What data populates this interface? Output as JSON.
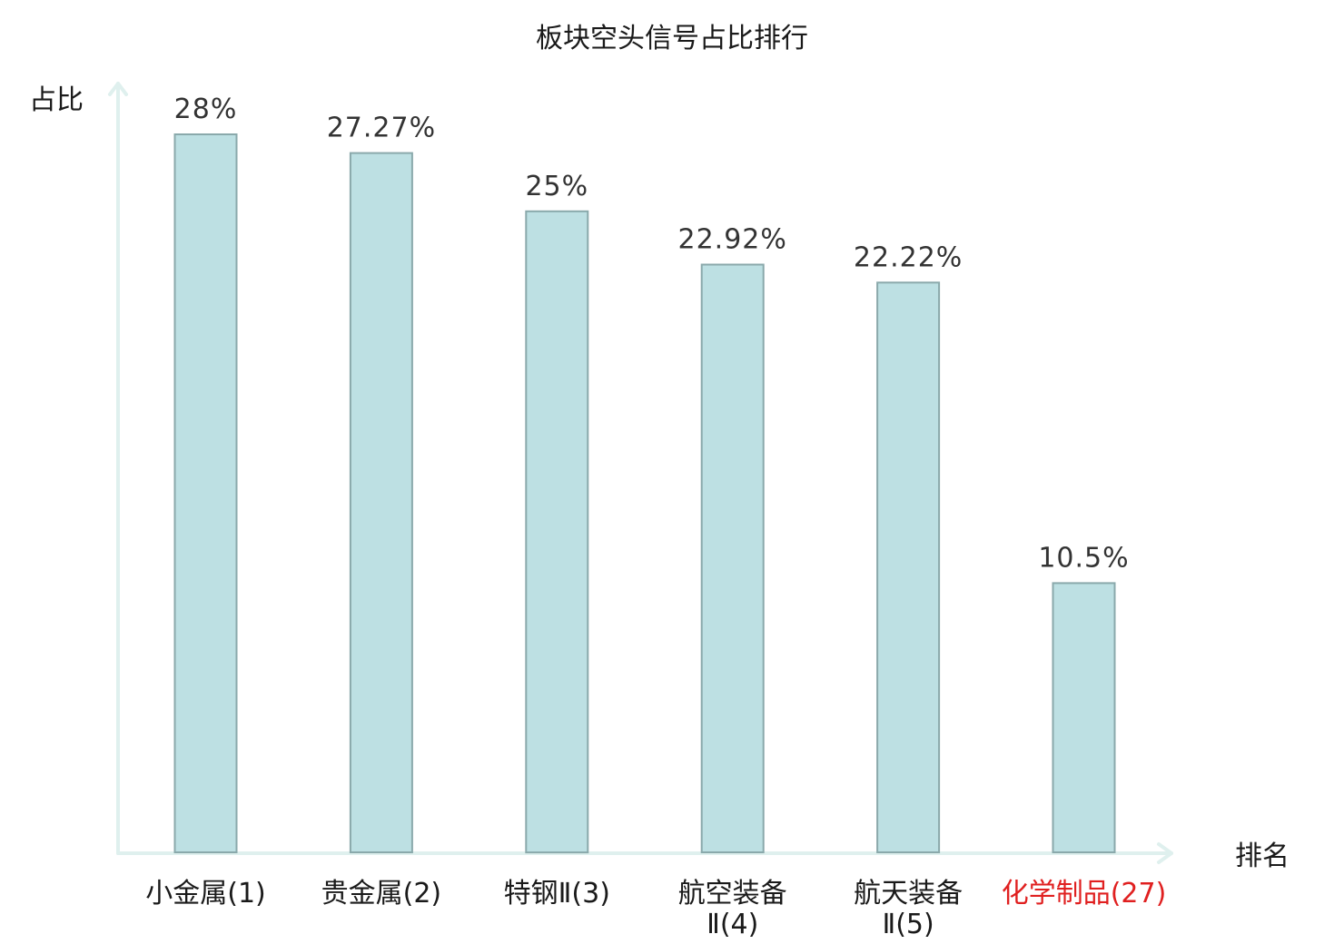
{
  "chart_data": {
    "type": "bar",
    "title": "板块空头信号占比排行",
    "ylabel": "占比",
    "xlabel": "排名",
    "categories": [
      {
        "lines": [
          "小金属(1)"
        ],
        "highlight": false
      },
      {
        "lines": [
          "贵金属(2)"
        ],
        "highlight": false
      },
      {
        "lines": [
          "特钢Ⅱ(3)"
        ],
        "highlight": false
      },
      {
        "lines": [
          "航空装备",
          "Ⅱ(4)"
        ],
        "highlight": false
      },
      {
        "lines": [
          "航天装备",
          "Ⅱ(5)"
        ],
        "highlight": false
      },
      {
        "lines": [
          "化学制品(27)"
        ],
        "highlight": true
      }
    ],
    "values": [
      28,
      27.27,
      25,
      22.92,
      22.22,
      10.5
    ],
    "value_labels": [
      "28%",
      "27.27%",
      "25%",
      "22.92%",
      "22.22%",
      "10.5%"
    ],
    "ylim": [
      0,
      28
    ],
    "grid": false,
    "colors": {
      "bar_fill": "#bde0e3",
      "bar_stroke": "#8aa9ab",
      "axis": "#dff0ee",
      "highlight_text": "#e02020"
    }
  }
}
